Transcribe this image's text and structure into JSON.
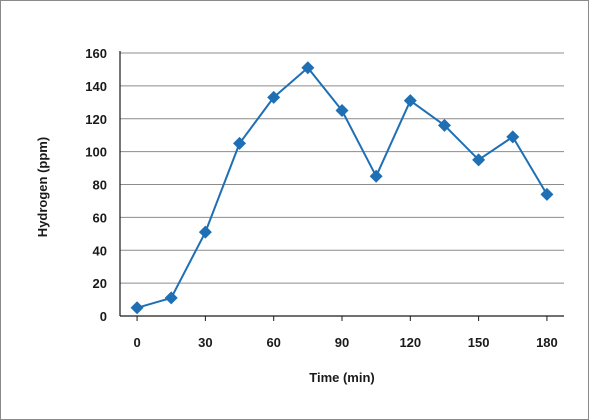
{
  "chart_data": {
    "type": "line",
    "title": "",
    "xlabel": "Time (min)",
    "ylabel": "Hydrogen (ppm)",
    "xlim": [
      -7.5,
      187.5
    ],
    "ylim": [
      0,
      160
    ],
    "xticks": [
      0,
      30,
      60,
      90,
      120,
      150,
      180
    ],
    "yticks": [
      0,
      20,
      40,
      60,
      80,
      100,
      120,
      140,
      160
    ],
    "grid": "horizontal",
    "legend": "none",
    "series": [
      {
        "color": "#1f6fb5",
        "marker": "diamond",
        "x": [
          0,
          15,
          30,
          45,
          60,
          75,
          90,
          105,
          120,
          135,
          150,
          165,
          180
        ],
        "y": [
          5,
          11,
          51,
          105,
          133,
          151,
          125,
          85,
          131,
          116,
          95,
          109,
          74
        ]
      }
    ]
  }
}
